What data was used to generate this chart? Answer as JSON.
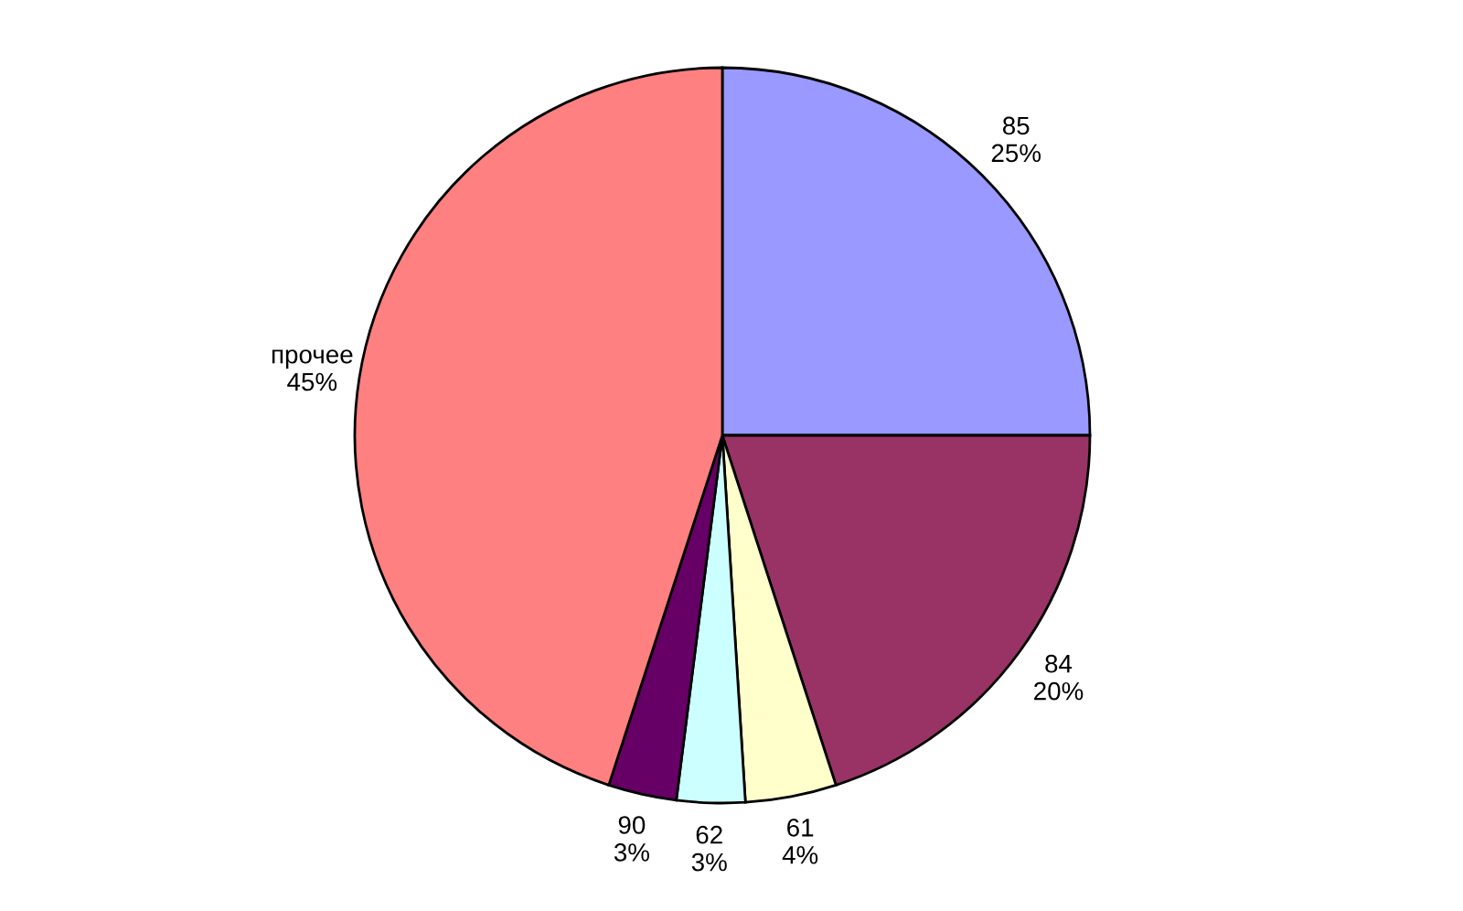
{
  "chart_data": {
    "type": "pie",
    "categories": [
      "85",
      "84",
      "61",
      "62",
      "90",
      "прочее"
    ],
    "values": [
      25,
      20,
      4,
      3,
      3,
      45
    ],
    "value_labels": [
      "25%",
      "20%",
      "4%",
      "3%",
      "3%",
      "45%"
    ],
    "colors": [
      "#9999ff",
      "#993366",
      "#ffffcc",
      "#ccffff",
      "#660066",
      "#ff8080"
    ]
  }
}
